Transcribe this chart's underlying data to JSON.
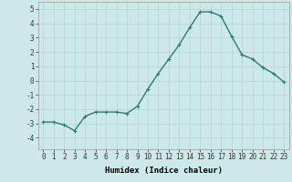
{
  "x": [
    0,
    1,
    2,
    3,
    4,
    5,
    6,
    7,
    8,
    9,
    10,
    11,
    12,
    13,
    14,
    15,
    16,
    17,
    18,
    19,
    20,
    21,
    22,
    23
  ],
  "y": [
    -2.9,
    -2.9,
    -3.1,
    -3.5,
    -2.5,
    -2.2,
    -2.2,
    -2.2,
    -2.3,
    -1.8,
    -0.6,
    0.5,
    1.5,
    2.5,
    3.7,
    4.8,
    4.8,
    4.5,
    3.1,
    1.8,
    1.5,
    0.9,
    0.5,
    -0.1
  ],
  "line_color": "#2d7d6e",
  "marker": "+",
  "marker_size": 3,
  "background_color": "#cce8e8",
  "grid_color": "#b0d4d4",
  "xlabel": "Humidex (Indice chaleur)",
  "ylabel": "",
  "ylim": [
    -4.8,
    5.5
  ],
  "xlim": [
    -0.5,
    23.5
  ],
  "yticks": [
    -4,
    -3,
    -2,
    -1,
    0,
    1,
    2,
    3,
    4,
    5
  ],
  "xticks": [
    0,
    1,
    2,
    3,
    4,
    5,
    6,
    7,
    8,
    9,
    10,
    11,
    12,
    13,
    14,
    15,
    16,
    17,
    18,
    19,
    20,
    21,
    22,
    23
  ],
  "tick_fontsize": 5.5,
  "xlabel_fontsize": 6.5,
  "linewidth": 1.0
}
